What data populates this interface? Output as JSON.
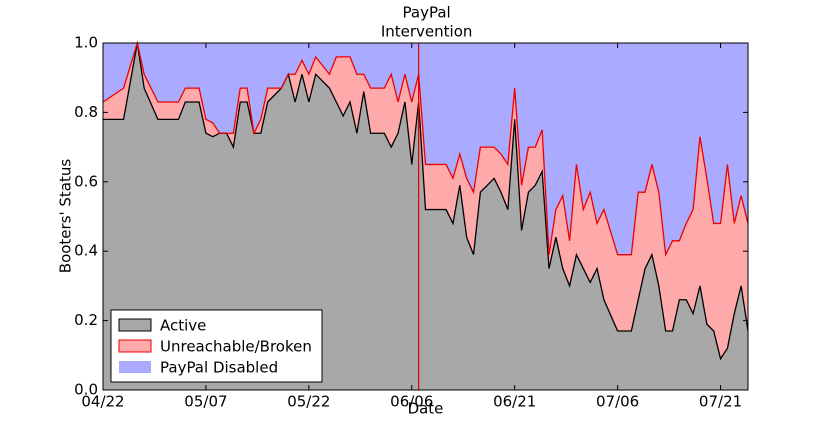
{
  "chart_data": {
    "type": "stacked_area",
    "annotation": {
      "x": "06/07",
      "lines": [
        "PayPal",
        "Intervention"
      ],
      "color": "#dd0000"
    },
    "x_label": "Date",
    "y_label": "Booters' Status",
    "x": [
      "04/22",
      "04/25",
      "04/27",
      "04/28",
      "04/30",
      "05/03",
      "05/04",
      "05/06",
      "05/07",
      "05/08",
      "05/09",
      "05/10",
      "05/11",
      "05/12",
      "05/13",
      "05/14",
      "05/15",
      "05/16",
      "05/18",
      "05/19",
      "05/20",
      "05/21",
      "05/22",
      "05/23",
      "05/25",
      "05/26",
      "05/27",
      "05/28",
      "05/29",
      "05/30",
      "05/31",
      "06/02",
      "06/03",
      "06/04",
      "06/05",
      "06/06",
      "06/07",
      "06/08",
      "06/11",
      "06/12",
      "06/13",
      "06/14",
      "06/15",
      "06/16",
      "06/17",
      "06/18",
      "06/19",
      "06/20",
      "06/21",
      "06/22",
      "06/23",
      "06/24",
      "06/25",
      "06/26",
      "06/27",
      "06/28",
      "06/29",
      "06/30",
      "07/01",
      "07/02",
      "07/03",
      "07/04",
      "07/06",
      "07/08",
      "07/09",
      "07/10",
      "07/11",
      "07/12",
      "07/13",
      "07/14",
      "07/15",
      "07/16",
      "07/17",
      "07/18",
      "07/19",
      "07/20",
      "07/21",
      "07/22",
      "07/23",
      "07/24",
      "07/25"
    ],
    "series": [
      {
        "name": "Active",
        "color": "#a8a8a8",
        "line_color": "#000000",
        "values": [
          0.78,
          0.78,
          1.0,
          0.87,
          0.78,
          0.78,
          0.83,
          0.83,
          0.74,
          0.73,
          0.74,
          0.74,
          0.7,
          0.83,
          0.83,
          0.74,
          0.74,
          0.83,
          0.87,
          0.91,
          0.83,
          0.91,
          0.83,
          0.91,
          0.87,
          0.83,
          0.79,
          0.83,
          0.74,
          0.86,
          0.74,
          0.74,
          0.7,
          0.74,
          0.83,
          0.65,
          0.83,
          0.52,
          0.52,
          0.48,
          0.59,
          0.44,
          0.39,
          0.57,
          0.59,
          0.61,
          0.57,
          0.52,
          0.78,
          0.46,
          0.57,
          0.59,
          0.63,
          0.35,
          0.44,
          0.35,
          0.3,
          0.39,
          0.35,
          0.31,
          0.35,
          0.26,
          0.17,
          0.17,
          0.26,
          0.35,
          0.39,
          0.3,
          0.17,
          0.17,
          0.26,
          0.26,
          0.22,
          0.3,
          0.19,
          0.17,
          0.09,
          0.12,
          0.22,
          0.3,
          0.17
        ]
      },
      {
        "name": "Unreachable/Broken",
        "color": "#ffaaaa",
        "line_color": "#ee0000",
        "values": [
          0.05,
          0.09,
          0,
          0.04,
          0.05,
          0.05,
          0.04,
          0.04,
          0.04,
          0.04,
          0,
          0,
          0.04,
          0.04,
          0.04,
          0,
          0.04,
          0.04,
          0,
          0,
          0.08,
          0.04,
          0.08,
          0.05,
          0.04,
          0.13,
          0.17,
          0.13,
          0.17,
          0.05,
          0.13,
          0.13,
          0.21,
          0.09,
          0.08,
          0.18,
          0.08,
          0.13,
          0.13,
          0.13,
          0.09,
          0.17,
          0.18,
          0.13,
          0.11,
          0.09,
          0.11,
          0.13,
          0.09,
          0.13,
          0.13,
          0.11,
          0.12,
          0.04,
          0.08,
          0.21,
          0.13,
          0.26,
          0.17,
          0.26,
          0.13,
          0.26,
          0.22,
          0.22,
          0.31,
          0.22,
          0.26,
          0.27,
          0.22,
          0.26,
          0.17,
          0.22,
          0.3,
          0.43,
          0.42,
          0.31,
          0.39,
          0.53,
          0.26,
          0.26,
          0.31
        ]
      },
      {
        "name": "PayPal Disabled",
        "color": "#aaaaff",
        "values": [
          0.17,
          0.13,
          0,
          0.09,
          0.17,
          0.17,
          0.13,
          0.13,
          0.22,
          0.23,
          0.26,
          0.26,
          0.26,
          0.13,
          0.13,
          0.26,
          0.22,
          0.13,
          0.13,
          0.09,
          0.09,
          0.05,
          0.09,
          0.04,
          0.09,
          0.04,
          0.04,
          0.04,
          0.09,
          0.09,
          0.13,
          0.13,
          0.09,
          0.17,
          0.09,
          0.17,
          0.09,
          0.35,
          0.35,
          0.39,
          0.32,
          0.39,
          0.43,
          0.3,
          0.3,
          0.3,
          0.32,
          0.35,
          0.13,
          0.41,
          0.3,
          0.3,
          0.25,
          0.61,
          0.48,
          0.44,
          0.57,
          0.35,
          0.48,
          0.43,
          0.52,
          0.48,
          0.61,
          0.61,
          0.43,
          0.43,
          0.35,
          0.43,
          0.61,
          0.57,
          0.57,
          0.52,
          0.48,
          0.27,
          0.39,
          0.52,
          0.52,
          0.35,
          0.52,
          0.44,
          0.52
        ]
      }
    ],
    "xlim": [
      "04/22",
      "07/25"
    ],
    "xticks": [
      "04/22",
      "05/07",
      "05/22",
      "06/06",
      "06/21",
      "07/06",
      "07/21"
    ],
    "ylim": [
      0,
      1
    ],
    "yticks": [
      {
        "value": 0,
        "label": "0.0"
      },
      0.2,
      0.4,
      0.6,
      0.8,
      {
        "value": 1,
        "label": "1.0"
      }
    ],
    "legend": "lower left"
  }
}
